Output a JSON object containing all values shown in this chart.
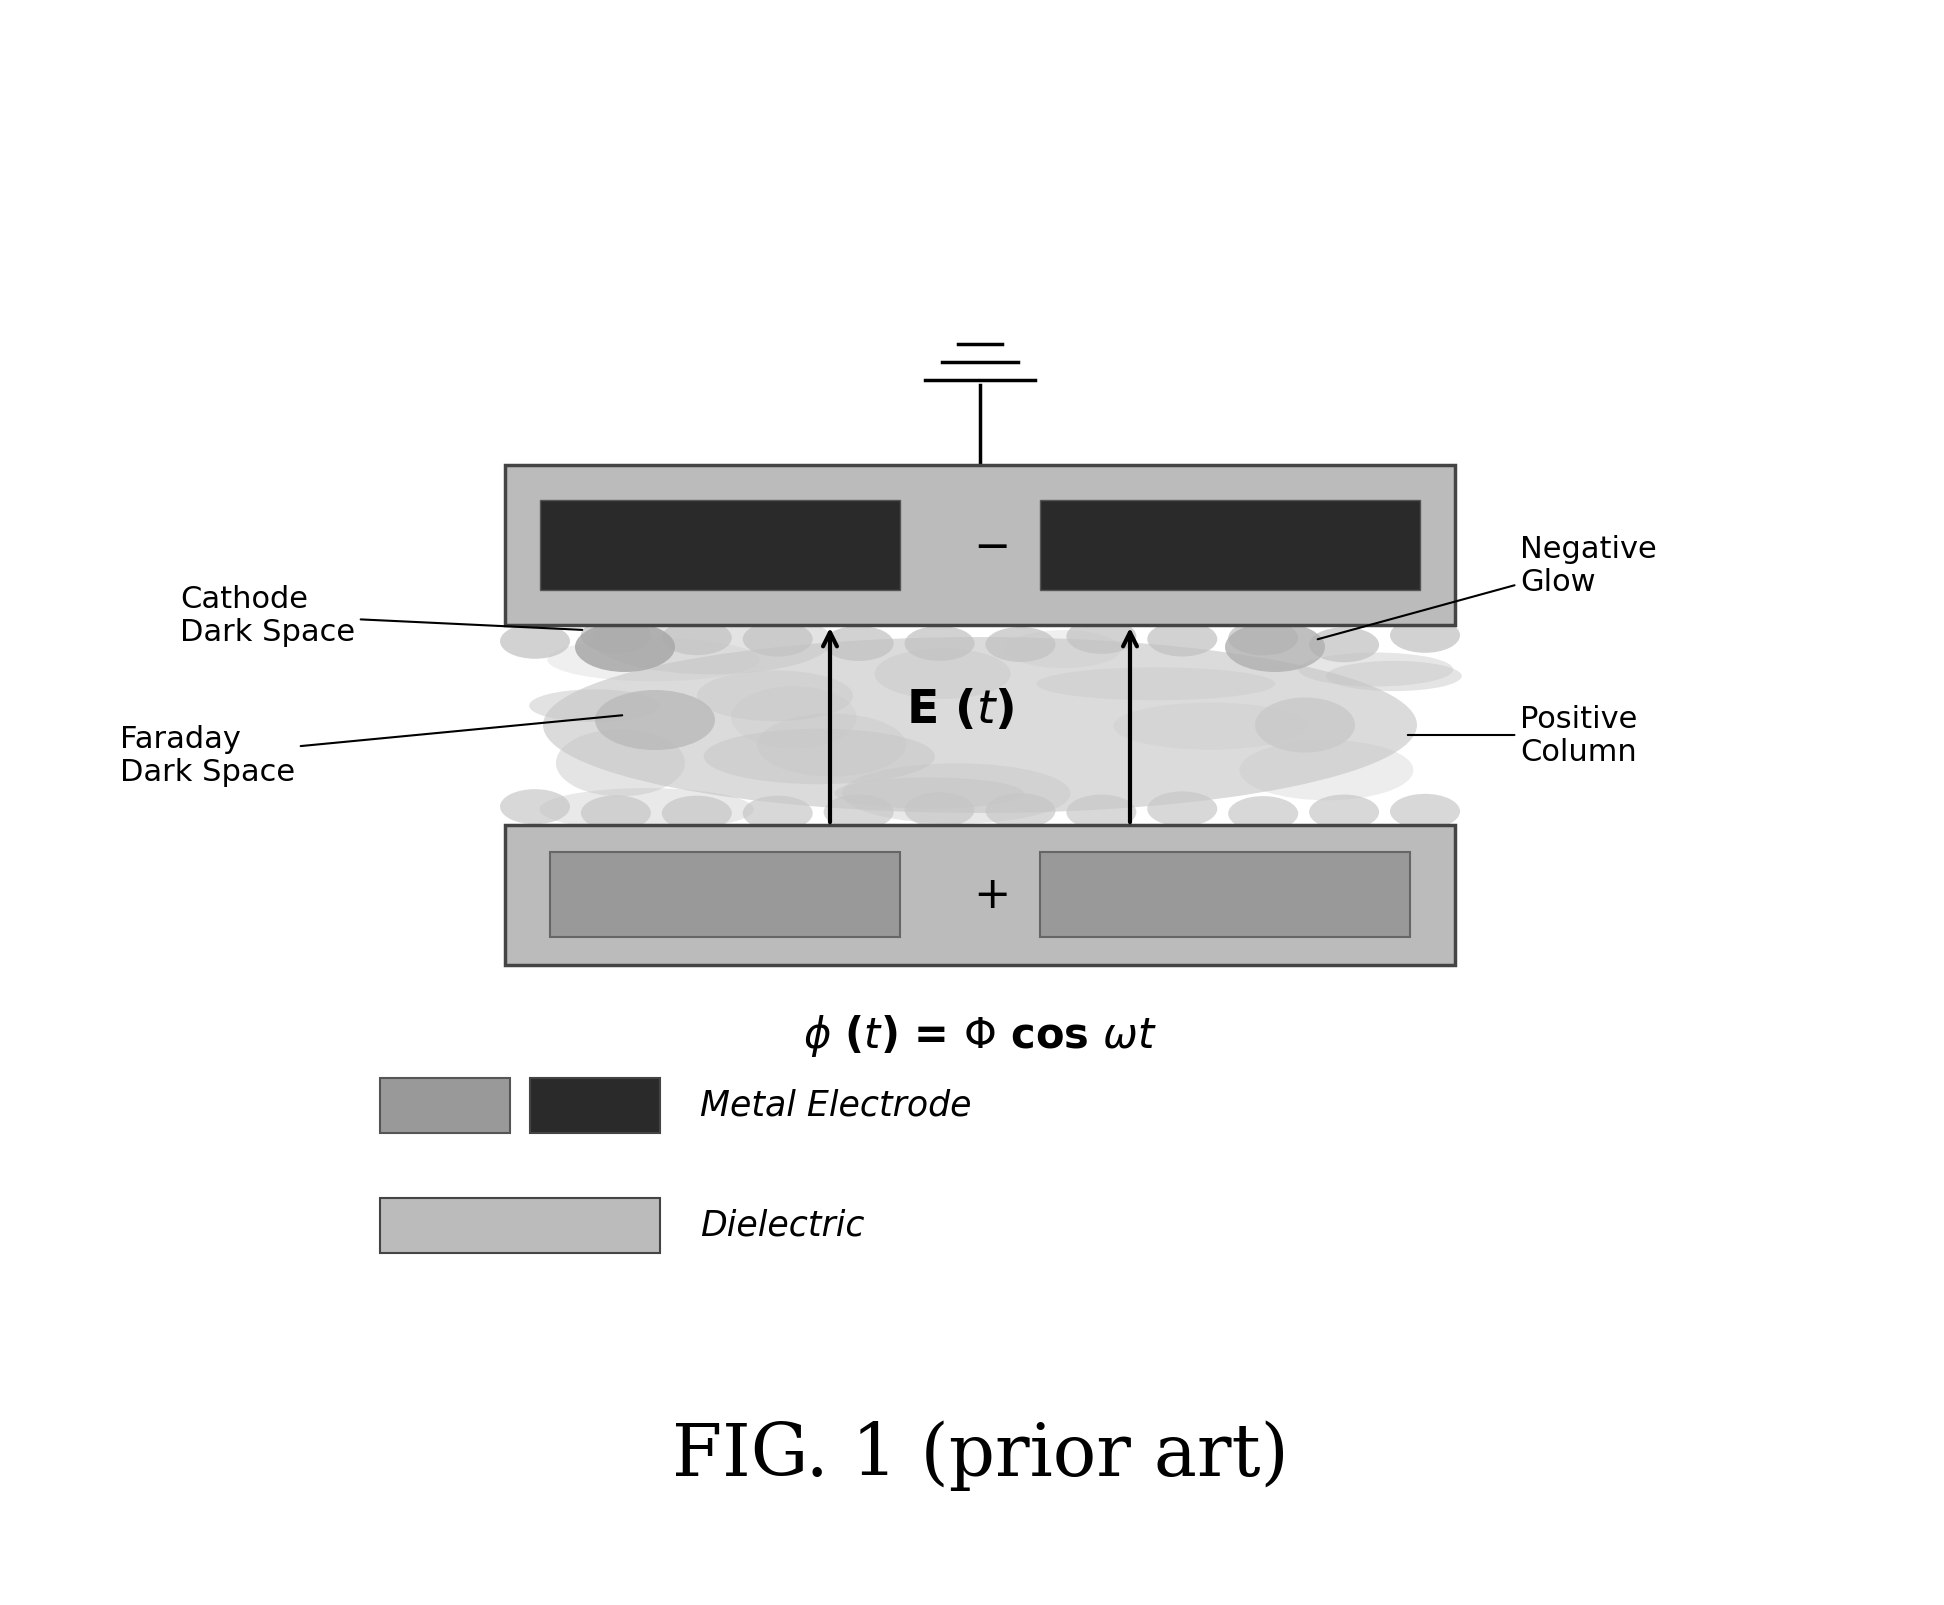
{
  "bg_color": "#ffffff",
  "dielectric_color": "#bbbbbb",
  "dielectric_border": "#444444",
  "metal_dark_color": "#2a2a2a",
  "metal_light_color": "#999999",
  "plasma_color_main": "#d8d8d8",
  "plasma_color_dark": "#b0b0b0",
  "title": "FIG. 1 (prior art)",
  "title_fontsize": 52,
  "annotation_fontsize": 22,
  "legend_metal_label": "Metal Electrode",
  "legend_dielectric_label": "Dielectric"
}
